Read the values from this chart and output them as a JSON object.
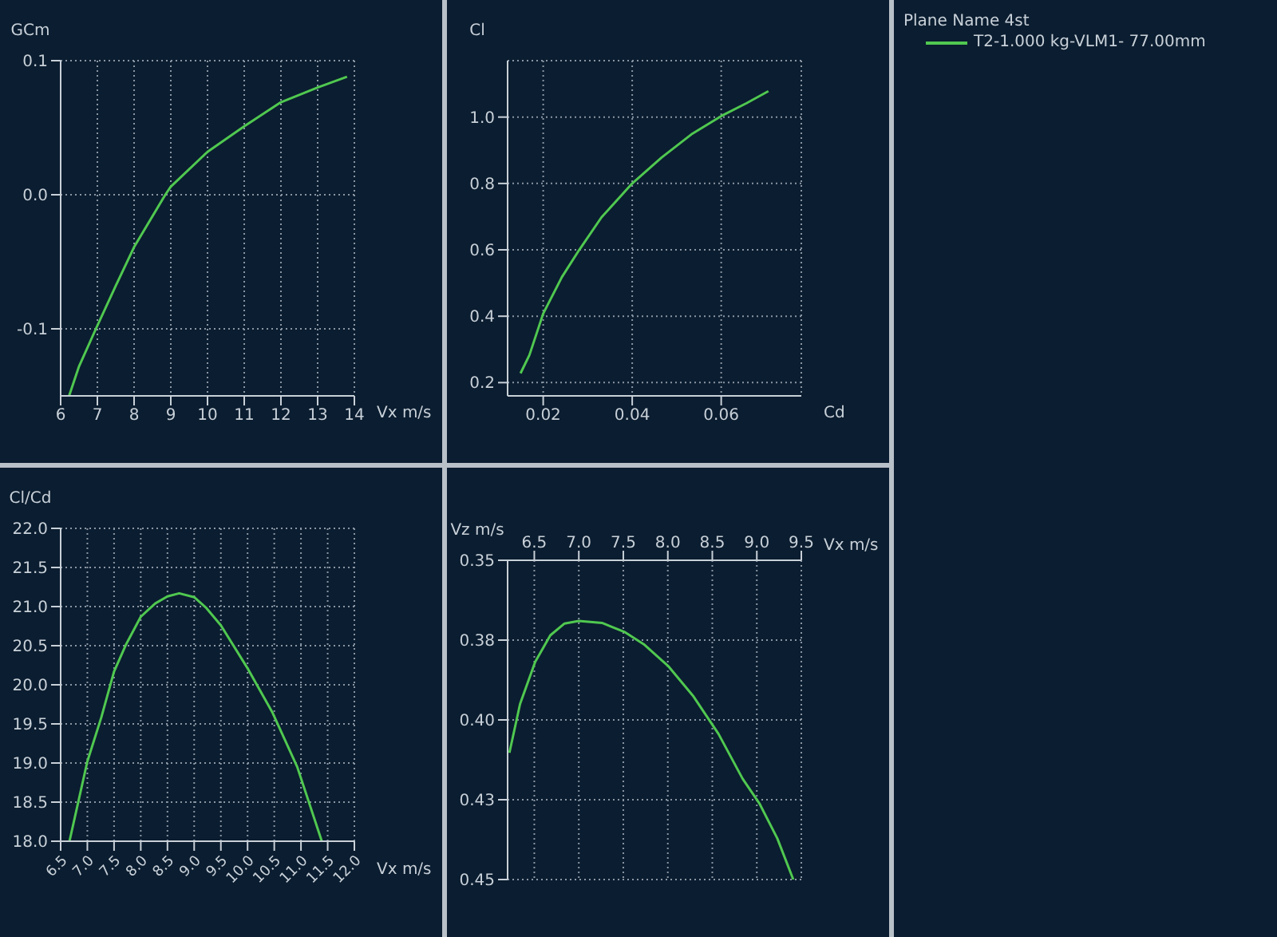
{
  "chart_data": [
    {
      "type": "line",
      "ylabel": "GCm",
      "xlabel": "Vx m/s",
      "xlim": [
        6,
        14
      ],
      "ylim": [
        -0.15,
        0.1
      ],
      "xticks": [
        6,
        7,
        8,
        9,
        10,
        11,
        12,
        13,
        14
      ],
      "yticks": [
        {
          "value": -0.1,
          "label": "-0.1"
        },
        {
          "value": 0,
          "label": "0.0"
        },
        0.1
      ],
      "grid": true,
      "marker": "none",
      "series": [
        {
          "color": "#50c850",
          "x": [
            6.23,
            6.5,
            6.96,
            7.5,
            8,
            8.85,
            9,
            10,
            11,
            12,
            13,
            13.8
          ],
          "values": [
            -0.15,
            -0.128,
            -0.1,
            -0.068,
            -0.039,
            0,
            0.006,
            0.032,
            0.051,
            0.069,
            0.08,
            0.088
          ]
        }
      ]
    },
    {
      "type": "line",
      "ylabel": "Cl",
      "xlabel": "Cd",
      "xlim": [
        0.012,
        0.078
      ],
      "ylim": [
        0.16,
        1.17
      ],
      "xticks": [
        0.02,
        0.04,
        0.06
      ],
      "yticks": [
        0.2,
        0.4,
        0.6,
        0.8,
        {
          "value": 1,
          "label": "1.0"
        }
      ],
      "grid": true,
      "marker": "none",
      "legend": "right",
      "legend_title": "Plane Name 4st",
      "series": [
        {
          "name": "T2-1.000 kg-VLM1- 77.00mm",
          "color": "#50c850",
          "x": [
            0.0149,
            0.0169,
            0.02,
            0.0242,
            0.0281,
            0.0331,
            0.04,
            0.0466,
            0.0533,
            0.06,
            0.0657,
            0.0706
          ],
          "values": [
            0.228,
            0.283,
            0.408,
            0.518,
            0.6,
            0.698,
            0.8,
            0.878,
            0.948,
            1.003,
            1.042,
            1.078
          ]
        }
      ]
    },
    {
      "type": "line",
      "ylabel": "Cl/Cd",
      "xlabel": "Vx m/s",
      "xlim": [
        6.5,
        12
      ],
      "ylim": [
        18,
        22
      ],
      "xticks": [
        6.5,
        {
          "value": 7,
          "label": "7.0"
        },
        7.5,
        {
          "value": 8,
          "label": "8.0"
        },
        8.5,
        {
          "value": 9,
          "label": "9.0"
        },
        9.5,
        {
          "value": 10,
          "label": "10.0"
        },
        10.5,
        {
          "value": 11,
          "label": "11.0"
        },
        11.5,
        {
          "value": 12,
          "label": "12.0"
        }
      ],
      "yticks": [
        {
          "value": 18,
          "label": "18.0"
        },
        18.5,
        {
          "value": 19,
          "label": "19.0"
        },
        19.5,
        {
          "value": 20,
          "label": "20.0"
        },
        20.5,
        {
          "value": 21,
          "label": "21.0"
        },
        21.5,
        {
          "value": 22,
          "label": "22.0"
        }
      ],
      "grid": true,
      "marker": "none",
      "series": [
        {
          "color": "#50c850",
          "x": [
            6.665,
            7,
            7.26,
            7.5,
            7.72,
            8,
            8.27,
            8.5,
            8.72,
            9,
            9.23,
            9.5,
            10.01,
            10.47,
            10.93,
            11.39
          ],
          "values": [
            18,
            19.02,
            19.58,
            20.17,
            20.51,
            20.87,
            21.04,
            21.13,
            21.17,
            21.12,
            20.98,
            20.76,
            20.2,
            19.64,
            18.95,
            18
          ]
        }
      ]
    },
    {
      "type": "line",
      "ylabel": "Vz m/s",
      "xlabel": "Vx m/s",
      "xlim": [
        6.2,
        9.5
      ],
      "ylim": [
        0.45,
        0.35
      ],
      "xticks": [
        6.5,
        {
          "value": 7,
          "label": "7.0"
        },
        7.5,
        {
          "value": 8,
          "label": "8.0"
        },
        8.5,
        {
          "value": 9,
          "label": "9.0"
        },
        9.5
      ],
      "yticks": [
        0.35,
        {
          "value": 0.375,
          "label": "0.38"
        },
        {
          "value": 0.4,
          "label": "0.40"
        },
        {
          "value": 0.425,
          "label": "0.43"
        },
        0.45
      ],
      "grid": true,
      "marker": "none",
      "series": [
        {
          "color": "#50c850",
          "x": [
            6.22,
            6.34,
            6.51,
            6.68,
            6.84,
            7,
            7.26,
            7.51,
            7.73,
            8.01,
            8.29,
            8.57,
            8.84,
            9.03,
            9.23,
            9.41
          ],
          "values": [
            0.4103,
            0.395,
            0.3818,
            0.3735,
            0.3698,
            0.369,
            0.3696,
            0.3724,
            0.3763,
            0.3833,
            0.3927,
            0.4044,
            0.4184,
            0.4262,
            0.4371,
            0.45
          ]
        }
      ]
    }
  ]
}
